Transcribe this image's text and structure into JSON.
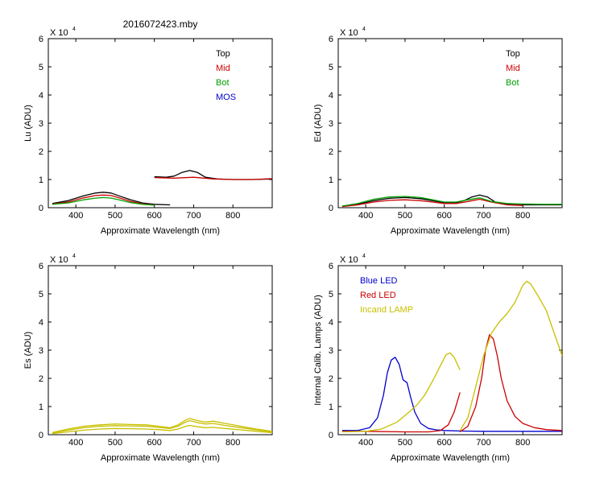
{
  "figure_title": "2016072423.mby",
  "colors": {
    "top": "#000000",
    "mid": "#cc0000",
    "bot": "#00a000",
    "mos": "#0000cc",
    "es": "#c8c000",
    "blue_led": "#0000cc",
    "red_led": "#cc0000",
    "incand": "#c8c000"
  },
  "chart_data": [
    {
      "id": "lu",
      "type": "line",
      "title": "2016072423.mby",
      "xlabel": "Approximate Wavelength (nm)",
      "ylabel": "Lu (ADU)",
      "exponent_base": "X 10",
      "exponent_power": "4",
      "xlim": [
        330,
        900
      ],
      "ylim": [
        0,
        6
      ],
      "xticks": [
        400,
        500,
        600,
        700,
        800
      ],
      "yticks": [
        0,
        1,
        2,
        3,
        4,
        5,
        6
      ],
      "legend": [
        {
          "label": "Top",
          "color": "#000000"
        },
        {
          "label": "Mid",
          "color": "#cc0000"
        },
        {
          "label": "Bot",
          "color": "#00a000"
        },
        {
          "label": "MOS",
          "color": "#0000cc"
        }
      ],
      "series": [
        {
          "name": "Top",
          "color": "#000000",
          "segments": [
            {
              "x": [
                340,
                380,
                420,
                450,
                470,
                490,
                510,
                540,
                570,
                600,
                640
              ],
              "y": [
                0.15,
                0.25,
                0.42,
                0.52,
                0.55,
                0.52,
                0.42,
                0.28,
                0.17,
                0.12,
                0.1
              ]
            },
            {
              "x": [
                600,
                630,
                650,
                670,
                690,
                710,
                730,
                760,
                800,
                850,
                900
              ],
              "y": [
                1.1,
                1.08,
                1.12,
                1.25,
                1.32,
                1.25,
                1.08,
                1.02,
                1.0,
                1.0,
                1.02
              ]
            }
          ]
        },
        {
          "name": "Mid",
          "color": "#cc0000",
          "segments": [
            {
              "x": [
                340,
                380,
                420,
                450,
                470,
                490,
                510,
                540,
                570,
                600
              ],
              "y": [
                0.13,
                0.2,
                0.35,
                0.43,
                0.45,
                0.43,
                0.35,
                0.22,
                0.14,
                0.1
              ]
            },
            {
              "x": [
                600,
                650,
                700,
                750,
                800,
                850,
                900
              ],
              "y": [
                1.07,
                1.05,
                1.08,
                1.02,
                1.0,
                1.0,
                1.03
              ]
            }
          ]
        },
        {
          "name": "Bot",
          "color": "#00a000",
          "segments": [
            {
              "x": [
                340,
                380,
                420,
                450,
                470,
                490,
                510,
                540,
                570,
                600
              ],
              "y": [
                0.12,
                0.17,
                0.28,
                0.34,
                0.36,
                0.34,
                0.28,
                0.18,
                0.12,
                0.09
              ]
            }
          ]
        }
      ]
    },
    {
      "id": "ed",
      "type": "line",
      "xlabel": "Approximate Wavelength (nm)",
      "ylabel": "Ed  (ADU)",
      "exponent_base": "X 10",
      "exponent_power": "4",
      "xlim": [
        330,
        900
      ],
      "ylim": [
        0,
        6
      ],
      "xticks": [
        400,
        500,
        600,
        700,
        800
      ],
      "yticks": [
        0,
        1,
        2,
        3,
        4,
        5,
        6
      ],
      "legend": [
        {
          "label": "Top",
          "color": "#000000"
        },
        {
          "label": "Mid",
          "color": "#cc0000"
        },
        {
          "label": "Bot",
          "color": "#00a000"
        }
      ],
      "series": [
        {
          "name": "Top",
          "color": "#000000",
          "segments": [
            {
              "x": [
                340,
                380,
                420,
                460,
                500,
                540,
                570,
                600,
                630,
                650,
                670,
                690,
                710,
                730,
                760,
                800,
                850,
                900
              ],
              "y": [
                0.05,
                0.12,
                0.25,
                0.33,
                0.36,
                0.32,
                0.25,
                0.18,
                0.18,
                0.25,
                0.38,
                0.45,
                0.38,
                0.2,
                0.12,
                0.1,
                0.1,
                0.1
              ]
            }
          ]
        },
        {
          "name": "Mid",
          "color": "#cc0000",
          "segments": [
            {
              "x": [
                340,
                380,
                420,
                460,
                500,
                540,
                570,
                600,
                630,
                660,
                690,
                720,
                760,
                800
              ],
              "y": [
                0.04,
                0.1,
                0.2,
                0.26,
                0.28,
                0.25,
                0.2,
                0.15,
                0.15,
                0.22,
                0.3,
                0.2,
                0.1,
                0.08
              ]
            }
          ]
        },
        {
          "name": "Bot",
          "color": "#00a000",
          "segments": [
            {
              "x": [
                340,
                380,
                420,
                460,
                500,
                540,
                570,
                600,
                630,
                660,
                690,
                720,
                760,
                800,
                850,
                900
              ],
              "y": [
                0.06,
                0.15,
                0.3,
                0.38,
                0.4,
                0.36,
                0.28,
                0.2,
                0.2,
                0.28,
                0.35,
                0.22,
                0.15,
                0.13,
                0.12,
                0.12
              ]
            }
          ]
        }
      ]
    },
    {
      "id": "es",
      "type": "line",
      "xlabel": "Approximate Wavelength (nm)",
      "ylabel": "Es  (ADU)",
      "exponent_base": "X 10",
      "exponent_power": "4",
      "xlim": [
        330,
        900
      ],
      "ylim": [
        0,
        6
      ],
      "xticks": [
        400,
        500,
        600,
        700,
        800
      ],
      "yticks": [
        0,
        1,
        2,
        3,
        4,
        5,
        6
      ],
      "legend": [],
      "series": [
        {
          "name": "Es 1",
          "color": "#c8c000",
          "segments": [
            {
              "x": [
                340,
                380,
                420,
                460,
                500,
                540,
                580,
                610,
                640,
                660,
                680,
                690,
                710,
                730,
                750,
                780,
                820,
                860,
                900
              ],
              "y": [
                0.08,
                0.2,
                0.3,
                0.35,
                0.38,
                0.36,
                0.35,
                0.3,
                0.25,
                0.35,
                0.52,
                0.58,
                0.5,
                0.45,
                0.48,
                0.4,
                0.3,
                0.2,
                0.12
              ]
            }
          ]
        },
        {
          "name": "Es 2",
          "color": "#c8c000",
          "segments": [
            {
              "x": [
                340,
                380,
                420,
                460,
                500,
                540,
                580,
                610,
                640,
                660,
                680,
                690,
                710,
                730,
                750,
                780,
                820,
                860,
                900
              ],
              "y": [
                0.06,
                0.16,
                0.25,
                0.3,
                0.32,
                0.31,
                0.3,
                0.26,
                0.22,
                0.3,
                0.45,
                0.5,
                0.43,
                0.38,
                0.4,
                0.33,
                0.25,
                0.17,
                0.1
              ]
            }
          ]
        },
        {
          "name": "Es 3",
          "color": "#c8c000",
          "segments": [
            {
              "x": [
                340,
                380,
                420,
                460,
                500,
                540,
                580,
                610,
                640,
                660,
                680,
                690,
                710,
                730,
                750,
                780,
                820,
                860,
                900
              ],
              "y": [
                0.04,
                0.1,
                0.16,
                0.2,
                0.22,
                0.21,
                0.2,
                0.18,
                0.15,
                0.2,
                0.3,
                0.33,
                0.28,
                0.25,
                0.26,
                0.22,
                0.17,
                0.12,
                0.07
              ]
            }
          ]
        }
      ]
    },
    {
      "id": "calib",
      "type": "line",
      "xlabel": "Approximate Wavelength (nm)",
      "ylabel": "Internal Calib. Lamps (ADU)",
      "exponent_base": "X 10",
      "exponent_power": "4",
      "xlim": [
        330,
        900
      ],
      "ylim": [
        0,
        6
      ],
      "xticks": [
        400,
        500,
        600,
        700,
        800
      ],
      "yticks": [
        0,
        1,
        2,
        3,
        4,
        5,
        6
      ],
      "legend": [
        {
          "label": "Blue LED",
          "color": "#0000cc"
        },
        {
          "label": "Red LED",
          "color": "#cc0000"
        },
        {
          "label": "Incand LAMP",
          "color": "#c8c000"
        }
      ],
      "series": [
        {
          "name": "Blue LED",
          "color": "#0000cc",
          "segments": [
            {
              "x": [
                340,
                380,
                410,
                430,
                445,
                455,
                465,
                475,
                485,
                495,
                505,
                515,
                525,
                540,
                560,
                580,
                600,
                650,
                700,
                800,
                900
              ],
              "y": [
                0.15,
                0.15,
                0.25,
                0.6,
                1.4,
                2.2,
                2.65,
                2.75,
                2.5,
                1.95,
                1.85,
                1.3,
                0.8,
                0.4,
                0.22,
                0.17,
                0.15,
                0.13,
                0.12,
                0.12,
                0.12
              ]
            }
          ]
        },
        {
          "name": "Red LED",
          "color": "#cc0000",
          "segments": [
            {
              "x": [
                340,
                400,
                500,
                560,
                590,
                610,
                625,
                640
              ],
              "y": [
                0.12,
                0.12,
                0.1,
                0.1,
                0.15,
                0.35,
                0.8,
                1.5
              ]
            },
            {
              "x": [
                640,
                660,
                680,
                695,
                705,
                715,
                725,
                735,
                745,
                760,
                780,
                800,
                830,
                860,
                900
              ],
              "y": [
                0.1,
                0.3,
                1.0,
                2.0,
                3.0,
                3.55,
                3.4,
                2.8,
                2.0,
                1.2,
                0.65,
                0.4,
                0.25,
                0.18,
                0.15
              ]
            }
          ]
        },
        {
          "name": "Incand LAMP",
          "color": "#c8c000",
          "segments": [
            {
              "x": [
                340,
                400,
                440,
                480,
                510,
                530,
                550,
                570,
                590,
                605,
                615,
                625,
                640
              ],
              "y": [
                0.1,
                0.12,
                0.2,
                0.45,
                0.8,
                1.05,
                1.4,
                1.9,
                2.45,
                2.85,
                2.9,
                2.75,
                2.3
              ]
            },
            {
              "x": [
                640,
                660,
                680,
                700,
                720,
                740,
                760,
                780,
                800,
                810,
                820,
                840,
                860,
                880,
                900
              ],
              "y": [
                0.15,
                0.6,
                1.7,
                2.8,
                3.6,
                4.0,
                4.3,
                4.7,
                5.3,
                5.45,
                5.35,
                4.9,
                4.4,
                3.6,
                2.8
              ]
            }
          ]
        }
      ]
    }
  ]
}
